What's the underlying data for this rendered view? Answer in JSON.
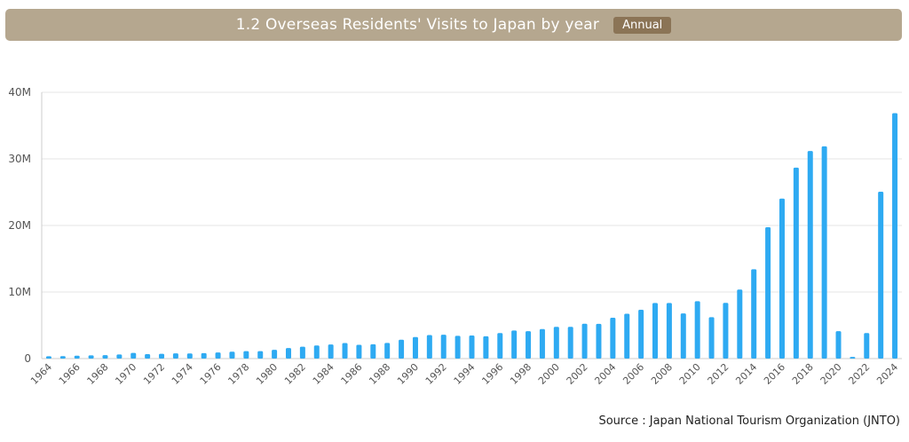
{
  "header": {
    "title": "1.2 Overseas Residents' Visits to Japan by year",
    "badge": "Annual"
  },
  "source": "Source : Japan National Tourism Organization (JNTO)",
  "colors": {
    "bar": "#2eaaf2",
    "grid": "#e6e6e6",
    "axis": "#cccccc",
    "tick_text": "#555555"
  },
  "chart_data": {
    "type": "bar",
    "title": "",
    "xlabel": "",
    "ylabel": "",
    "ylim": [
      0,
      40000000
    ],
    "y_ticks": [
      0,
      10000000,
      20000000,
      30000000,
      40000000
    ],
    "y_tick_labels": [
      "0",
      "10M",
      "20M",
      "30M",
      "40M"
    ],
    "x_tick_labels": [
      "1964",
      "1966",
      "1968",
      "1970",
      "1972",
      "1974",
      "1976",
      "1978",
      "1980",
      "1982",
      "1984",
      "1986",
      "1988",
      "1990",
      "1992",
      "1994",
      "1996",
      "1998",
      "2000",
      "2002",
      "2004",
      "2006",
      "2008",
      "2010",
      "2012",
      "2014",
      "2016",
      "2018",
      "2020",
      "2022",
      "2024"
    ],
    "grid": true,
    "categories": [
      "1964",
      "1965",
      "1966",
      "1967",
      "1968",
      "1969",
      "1970",
      "1971",
      "1972",
      "1973",
      "1974",
      "1975",
      "1976",
      "1977",
      "1978",
      "1979",
      "1980",
      "1981",
      "1982",
      "1983",
      "1984",
      "1985",
      "1986",
      "1987",
      "1988",
      "1989",
      "1990",
      "1991",
      "1992",
      "1993",
      "1994",
      "1995",
      "1996",
      "1997",
      "1998",
      "1999",
      "2000",
      "2001",
      "2002",
      "2003",
      "2004",
      "2005",
      "2006",
      "2007",
      "2008",
      "2009",
      "2010",
      "2011",
      "2012",
      "2013",
      "2014",
      "2015",
      "2016",
      "2017",
      "2018",
      "2019",
      "2020",
      "2021",
      "2022",
      "2023",
      "2024"
    ],
    "values": [
      350000,
      370000,
      430000,
      480000,
      520000,
      610000,
      850000,
      660000,
      720000,
      780000,
      760000,
      810000,
      910000,
      1030000,
      1110000,
      1110000,
      1320000,
      1580000,
      1790000,
      1970000,
      2110000,
      2330000,
      2060000,
      2150000,
      2350000,
      2830000,
      3240000,
      3530000,
      3580000,
      3410000,
      3470000,
      3350000,
      3840000,
      4220000,
      4110000,
      4440000,
      4760000,
      4770000,
      5240000,
      5210000,
      6140000,
      6730000,
      7330000,
      8350000,
      8350000,
      6790000,
      8610000,
      6220000,
      8360000,
      10360000,
      13410000,
      19740000,
      24040000,
      28690000,
      31190000,
      31880000,
      4120000,
      250000,
      3830000,
      25070000,
      36870000
    ]
  }
}
